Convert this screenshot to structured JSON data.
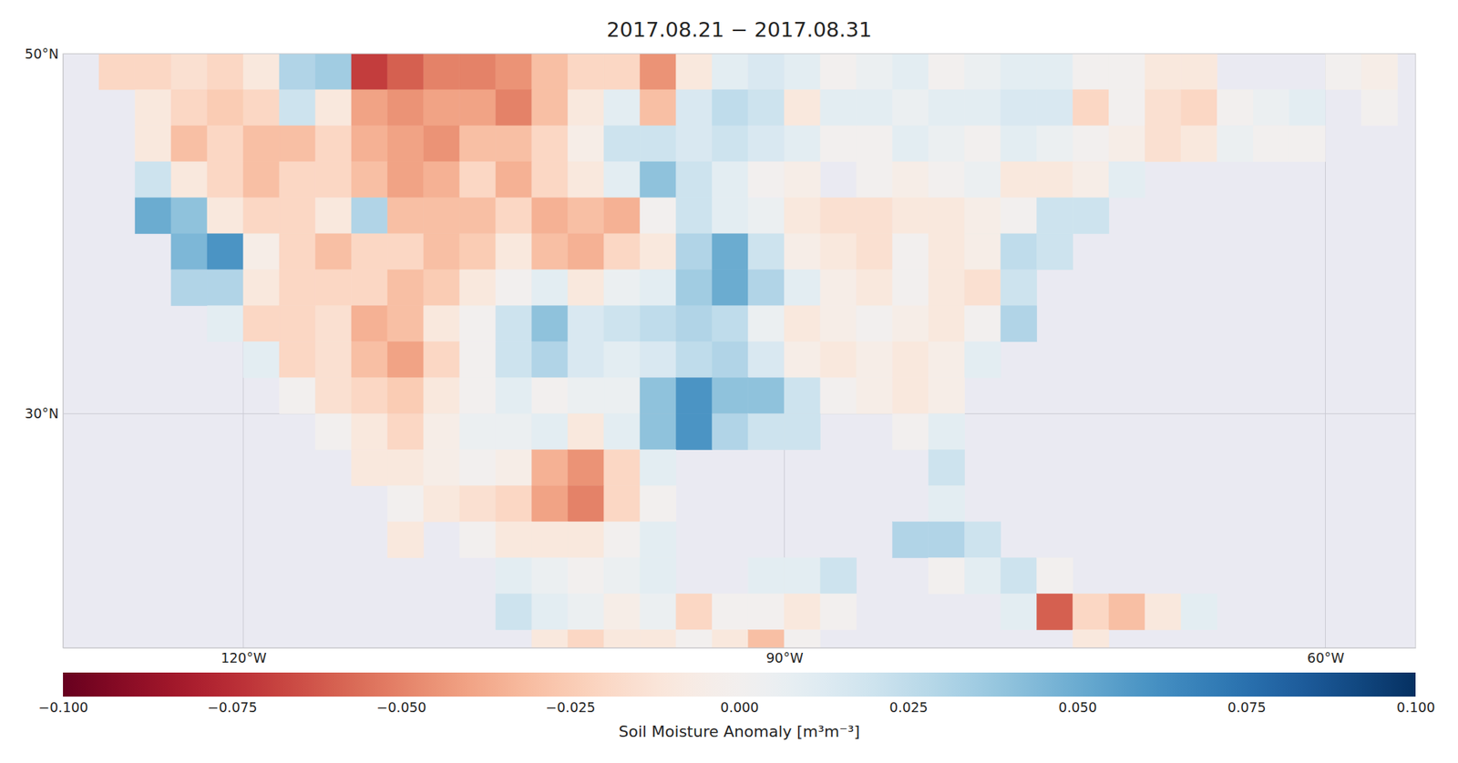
{
  "chart_data": {
    "type": "heatmap",
    "title": "2017.08.21 − 2017.08.31",
    "xlim": [
      -130,
      -55
    ],
    "ylim": [
      17,
      50
    ],
    "xticks": [
      {
        "value": -120,
        "label": "120°W"
      },
      {
        "value": -90,
        "label": "90°W"
      },
      {
        "value": -60,
        "label": "60°W"
      }
    ],
    "yticks": [
      {
        "value": 30,
        "label": "30°N"
      },
      {
        "value": 50,
        "label": "50°N"
      }
    ],
    "grid": true,
    "x": [
      -129,
      -127,
      -125,
      -123,
      -121,
      -119,
      -117,
      -115,
      -113,
      -111,
      -109,
      -107,
      -105,
      -103,
      -101,
      -99,
      -97,
      -95,
      -93,
      -91,
      -89,
      -87,
      -85,
      -83,
      -81,
      -79,
      -77,
      -75,
      -73,
      -71,
      -69,
      -67,
      -65,
      -63,
      -61,
      -59,
      -57
    ],
    "y": [
      49,
      47,
      45,
      43,
      41,
      39,
      37,
      35,
      33,
      31,
      29,
      27,
      25,
      23,
      21,
      19,
      17
    ],
    "z": [
      [
        null,
        -0.02,
        -0.02,
        -0.015,
        -0.02,
        -0.01,
        0.03,
        0.035,
        -0.07,
        -0.06,
        -0.05,
        -0.05,
        -0.045,
        -0.03,
        -0.02,
        -0.02,
        -0.045,
        -0.01,
        0.01,
        0.015,
        0.01,
        0,
        0.005,
        0.01,
        0,
        0.005,
        0.01,
        0.01,
        0,
        0,
        -0.01,
        -0.01,
        null,
        null,
        null,
        0,
        -0.005
      ],
      [
        null,
        null,
        -0.01,
        -0.02,
        -0.025,
        -0.02,
        0.02,
        -0.01,
        -0.04,
        -0.045,
        -0.04,
        -0.04,
        -0.05,
        -0.03,
        -0.01,
        0.01,
        -0.03,
        0.015,
        0.025,
        0.02,
        -0.01,
        0.01,
        0.01,
        0.005,
        0.01,
        0.01,
        0.015,
        0.015,
        -0.02,
        0,
        -0.015,
        -0.02,
        0,
        0.005,
        0.01,
        null,
        0
      ],
      [
        null,
        null,
        -0.01,
        -0.03,
        -0.02,
        -0.03,
        -0.03,
        -0.02,
        -0.035,
        -0.04,
        -0.045,
        -0.03,
        -0.03,
        -0.02,
        -0.005,
        0.02,
        0.02,
        0.015,
        0.02,
        0.015,
        0.01,
        0,
        0,
        0.01,
        0.005,
        0,
        0.01,
        0.005,
        0,
        -0.005,
        -0.015,
        -0.01,
        0.005,
        0,
        0,
        null,
        null
      ],
      [
        null,
        null,
        0.02,
        -0.01,
        -0.02,
        -0.03,
        -0.02,
        -0.02,
        -0.03,
        -0.04,
        -0.035,
        -0.02,
        -0.035,
        -0.02,
        -0.01,
        0.01,
        0.04,
        0.02,
        0.01,
        0,
        -0.005,
        null,
        0,
        -0.005,
        0,
        0.005,
        -0.01,
        -0.01,
        -0.005,
        0.01,
        null,
        null,
        null,
        null,
        null,
        null,
        null
      ],
      [
        null,
        null,
        0.05,
        0.04,
        -0.01,
        -0.02,
        -0.02,
        -0.01,
        0.03,
        -0.03,
        -0.03,
        -0.03,
        -0.02,
        -0.035,
        -0.03,
        -0.035,
        0,
        0.02,
        0.01,
        0.005,
        -0.01,
        -0.015,
        -0.015,
        -0.01,
        -0.01,
        -0.005,
        0,
        0.02,
        0.02,
        null,
        null,
        null,
        null,
        null,
        null,
        null,
        null
      ],
      [
        null,
        null,
        null,
        0.045,
        0.06,
        -0.005,
        -0.02,
        -0.03,
        -0.02,
        -0.02,
        -0.03,
        -0.025,
        -0.01,
        -0.03,
        -0.035,
        -0.02,
        -0.01,
        0.03,
        0.05,
        0.02,
        -0.005,
        -0.01,
        -0.015,
        0,
        -0.01,
        -0.005,
        0.025,
        0.02,
        null,
        null,
        null,
        null,
        null,
        null,
        null,
        null,
        null
      ],
      [
        null,
        null,
        null,
        0.03,
        0.03,
        -0.01,
        -0.02,
        -0.02,
        -0.02,
        -0.03,
        -0.025,
        -0.01,
        0,
        0.01,
        -0.01,
        0.005,
        0.01,
        0.035,
        0.05,
        0.03,
        0.01,
        -0.005,
        -0.01,
        0,
        -0.01,
        -0.015,
        0.02,
        null,
        null,
        null,
        null,
        null,
        null,
        null,
        null,
        null,
        null
      ],
      [
        null,
        null,
        null,
        null,
        0.01,
        -0.02,
        -0.02,
        -0.015,
        -0.035,
        -0.03,
        -0.01,
        0,
        0.02,
        0.04,
        0.015,
        0.02,
        0.025,
        0.03,
        0.025,
        0.005,
        -0.01,
        -0.005,
        0,
        -0.005,
        -0.01,
        0,
        0.03,
        null,
        null,
        null,
        null,
        null,
        null,
        null,
        null,
        null,
        null
      ],
      [
        null,
        null,
        null,
        null,
        null,
        0.01,
        -0.02,
        -0.015,
        -0.03,
        -0.04,
        -0.02,
        0,
        0.02,
        0.03,
        0.015,
        0.01,
        0.015,
        0.025,
        0.03,
        0.015,
        -0.005,
        -0.01,
        -0.005,
        -0.01,
        -0.005,
        0.01,
        null,
        null,
        null,
        null,
        null,
        null,
        null,
        null,
        null,
        null,
        null
      ],
      [
        null,
        null,
        null,
        null,
        null,
        null,
        0,
        -0.015,
        -0.02,
        -0.025,
        -0.01,
        0,
        0.01,
        0,
        0.005,
        0.005,
        0.04,
        0.06,
        0.04,
        0.04,
        0.02,
        0,
        -0.005,
        -0.01,
        -0.005,
        null,
        null,
        null,
        null,
        null,
        null,
        null,
        null,
        null,
        null,
        null,
        null
      ],
      [
        null,
        null,
        null,
        null,
        null,
        null,
        null,
        0,
        -0.01,
        -0.02,
        -0.005,
        0.005,
        0.005,
        0.01,
        -0.01,
        0.01,
        0.04,
        0.06,
        0.03,
        0.02,
        0.02,
        null,
        null,
        0,
        0.01,
        null,
        null,
        null,
        null,
        null,
        null,
        null,
        null,
        null,
        null,
        null,
        null
      ],
      [
        null,
        null,
        null,
        null,
        null,
        null,
        null,
        null,
        -0.01,
        -0.01,
        -0.005,
        0,
        -0.005,
        -0.035,
        -0.045,
        -0.02,
        0.01,
        null,
        null,
        null,
        null,
        null,
        null,
        null,
        0.02,
        null,
        null,
        null,
        null,
        null,
        null,
        null,
        null,
        null,
        null,
        null,
        null
      ],
      [
        null,
        null,
        null,
        null,
        null,
        null,
        null,
        null,
        null,
        0,
        -0.01,
        -0.015,
        -0.02,
        -0.04,
        -0.05,
        -0.02,
        0,
        null,
        null,
        null,
        null,
        null,
        null,
        null,
        0.01,
        null,
        null,
        null,
        null,
        null,
        null,
        null,
        null,
        null,
        null,
        null,
        null
      ],
      [
        null,
        null,
        null,
        null,
        null,
        null,
        null,
        null,
        null,
        -0.01,
        null,
        0,
        -0.01,
        -0.01,
        -0.01,
        0,
        0.01,
        null,
        null,
        null,
        null,
        null,
        null,
        0.03,
        0.03,
        0.02,
        null,
        null,
        null,
        null,
        null,
        null,
        null,
        null,
        null,
        null,
        null
      ],
      [
        null,
        null,
        null,
        null,
        null,
        null,
        null,
        null,
        null,
        null,
        null,
        null,
        0.01,
        0.005,
        0,
        0.005,
        0.01,
        null,
        null,
        0.01,
        0.01,
        0.02,
        null,
        null,
        0,
        0.01,
        0.02,
        0,
        null,
        null,
        null,
        null,
        null,
        null,
        null,
        null,
        null
      ],
      [
        null,
        null,
        null,
        null,
        null,
        null,
        null,
        null,
        null,
        null,
        null,
        null,
        0.02,
        0.01,
        0.005,
        -0.005,
        0.005,
        -0.02,
        0,
        0,
        -0.01,
        0,
        null,
        null,
        null,
        null,
        0.01,
        -0.06,
        -0.02,
        -0.03,
        -0.01,
        0.01,
        null,
        null,
        null,
        null,
        null
      ],
      [
        null,
        null,
        null,
        null,
        null,
        null,
        null,
        null,
        null,
        null,
        null,
        null,
        null,
        -0.01,
        -0.02,
        -0.01,
        -0.01,
        0,
        -0.01,
        -0.03,
        0,
        null,
        null,
        null,
        null,
        null,
        null,
        null,
        -0.01,
        null,
        null,
        null,
        null,
        null,
        null,
        null,
        null
      ]
    ],
    "clim": [
      -0.1,
      0.1
    ],
    "cticks": [
      {
        "value": -0.1,
        "label": "−0.100"
      },
      {
        "value": -0.075,
        "label": "−0.075"
      },
      {
        "value": -0.05,
        "label": "−0.050"
      },
      {
        "value": -0.025,
        "label": "−0.025"
      },
      {
        "value": 0,
        "label": "0.000"
      },
      {
        "value": 0.025,
        "label": "0.025"
      },
      {
        "value": 0.05,
        "label": "0.050"
      },
      {
        "value": 0.075,
        "label": "0.075"
      },
      {
        "value": 0.1,
        "label": "0.100"
      }
    ],
    "colorbar_label": "Soil Moisture Anomaly [m³m⁻³]"
  }
}
